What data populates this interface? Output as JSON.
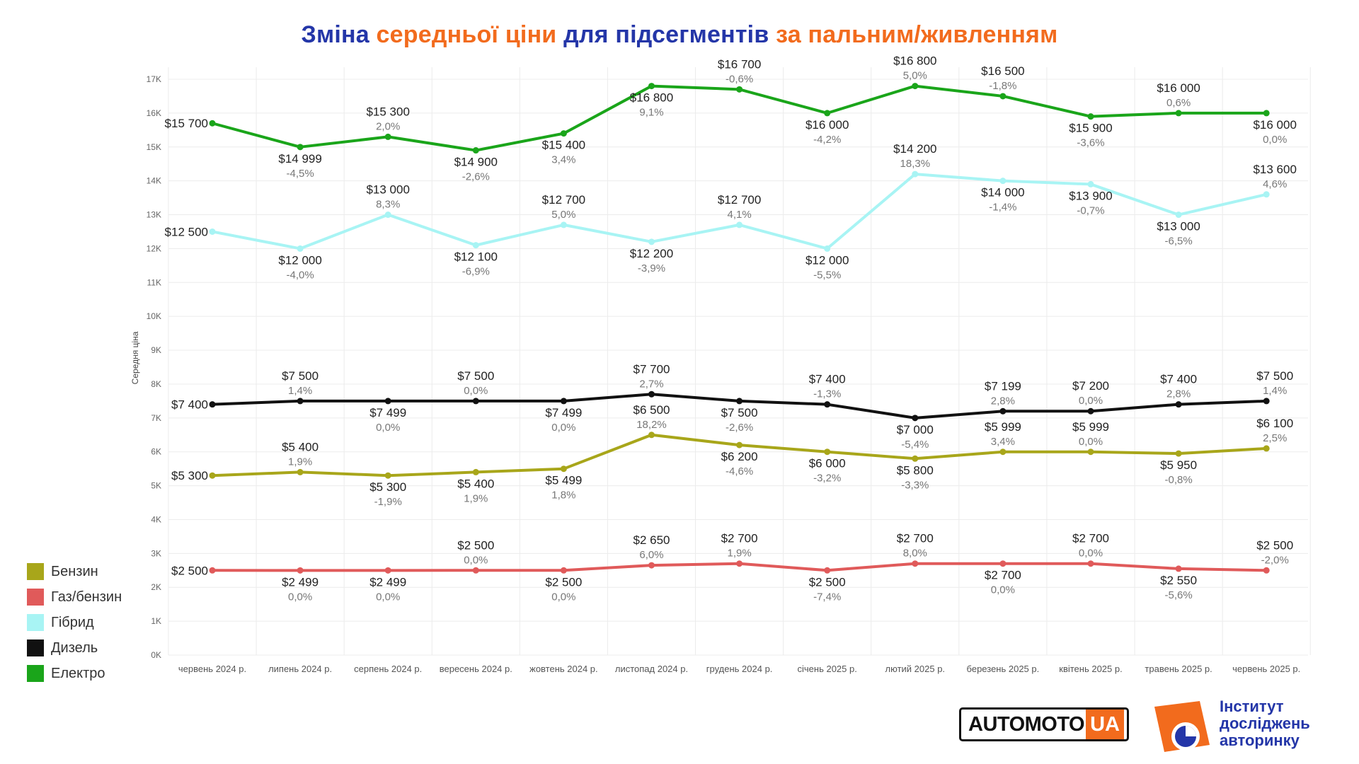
{
  "title": {
    "part1": "Зміна ",
    "part2": "середньої ціни",
    "part3": " для підсегментів ",
    "part4": "за пальним/живленням"
  },
  "colors": {
    "title_primary": "#2436a8",
    "title_accent": "#f26b1d"
  },
  "chart_data": {
    "type": "line",
    "ylabel": "Середня ціна",
    "ylim": [
      0,
      17000
    ],
    "y_ticks": [
      "0K",
      "1K",
      "2K",
      "3K",
      "4K",
      "5K",
      "6K",
      "7K",
      "8K",
      "9K",
      "10K",
      "11K",
      "12K",
      "13K",
      "14K",
      "15K",
      "16K",
      "17K"
    ],
    "categories": [
      "червень 2024 р.",
      "липень 2024 р.",
      "серпень 2024 р.",
      "вересень 2024 р.",
      "жовтень 2024 р.",
      "листопад 2024 р.",
      "грудень 2024 р.",
      "січень 2025 р.",
      "лютий 2025 р.",
      "березень 2025 р.",
      "квітень 2025 р.",
      "травень 2025 р.",
      "червень 2025 р."
    ],
    "grid": true,
    "legend_position": "bottom-left",
    "series": [
      {
        "name": "Електро",
        "color": "#1aa51a",
        "values": [
          15700,
          14999,
          15300,
          14900,
          15400,
          16800,
          16700,
          16000,
          16800,
          16500,
          15900,
          16000,
          16000
        ],
        "labels": [
          "$15 700",
          "$14 999",
          "$15 300",
          "$14 900",
          "$15 400",
          "$16 800",
          "$16 700",
          "$16 000",
          "$16 800",
          "$16 500",
          "$15 900",
          "$16 000",
          "$16 000"
        ],
        "changes": [
          "",
          "-4,5%",
          "2,0%",
          "-2,6%",
          "3,4%",
          "9,1%",
          "-0,6%",
          "-4,2%",
          "5,0%",
          "-1,8%",
          "-3,6%",
          "0,6%",
          "0,0%"
        ],
        "placement": [
          "left",
          "below",
          "above",
          "below",
          "below",
          "below",
          "above",
          "below",
          "above",
          "above",
          "below",
          "above",
          "below"
        ]
      },
      {
        "name": "Гібрид",
        "color": "#a8f4f4",
        "values": [
          12500,
          12000,
          13000,
          12100,
          12700,
          12200,
          12700,
          12000,
          14200,
          14000,
          13900,
          13000,
          13600
        ],
        "labels": [
          "$12 500",
          "$12 000",
          "$13 000",
          "$12 100",
          "$12 700",
          "$12 200",
          "$12 700",
          "$12 000",
          "$14 200",
          "$14 000",
          "$13 900",
          "$13 000",
          "$13 600"
        ],
        "changes": [
          "",
          "-4,0%",
          "8,3%",
          "-6,9%",
          "5,0%",
          "-3,9%",
          "4,1%",
          "-5,5%",
          "18,3%",
          "-1,4%",
          "-0,7%",
          "-6,5%",
          "4,6%"
        ],
        "placement": [
          "left",
          "below",
          "above",
          "below",
          "above",
          "below",
          "above",
          "below",
          "above",
          "below",
          "below",
          "below",
          "above"
        ]
      },
      {
        "name": "Дизель",
        "color": "#111111",
        "values": [
          7400,
          7500,
          7499,
          7500,
          7499,
          7700,
          7500,
          7400,
          7000,
          7199,
          7200,
          7400,
          7500
        ],
        "labels": [
          "$7 400",
          "$7 500",
          "$7 499",
          "$7 500",
          "$7 499",
          "$7 700",
          "$7 500",
          "$7 400",
          "$7 000",
          "$7 199",
          "$7 200",
          "$7 400",
          "$7 500"
        ],
        "changes": [
          "",
          "1,4%",
          "0,0%",
          "0,0%",
          "0,0%",
          "2,7%",
          "-2,6%",
          "-1,3%",
          "-5,4%",
          "2,8%",
          "0,0%",
          "2,8%",
          "1,4%"
        ],
        "placement": [
          "left",
          "above",
          "below",
          "above",
          "below",
          "above",
          "below",
          "above",
          "below",
          "above",
          "above",
          "above",
          "above"
        ]
      },
      {
        "name": "Бензин",
        "color": "#a8a61a",
        "values": [
          5300,
          5400,
          5300,
          5400,
          5499,
          6500,
          6200,
          6000,
          5800,
          5999,
          5999,
          5950,
          6100
        ],
        "labels": [
          "$5 300",
          "$5 400",
          "$5 300",
          "$5 400",
          "$5 499",
          "$6 500",
          "$6 200",
          "$6 000",
          "$5 800",
          "$5 999",
          "$5 999",
          "$5 950",
          "$6 100"
        ],
        "changes": [
          "",
          "1,9%",
          "-1,9%",
          "1,9%",
          "1,8%",
          "18,2%",
          "-4,6%",
          "-3,2%",
          "-3,3%",
          "3,4%",
          "0,0%",
          "-0,8%",
          "2,5%"
        ],
        "placement": [
          "left",
          "above",
          "below",
          "below",
          "below",
          "above",
          "below",
          "below",
          "below",
          "above",
          "above",
          "below",
          "above"
        ]
      },
      {
        "name": "Газ/бензин",
        "color": "#e05a5a",
        "values": [
          2500,
          2499,
          2499,
          2500,
          2500,
          2650,
          2700,
          2500,
          2700,
          2700,
          2700,
          2550,
          2500
        ],
        "labels": [
          "$2 500",
          "$2 499",
          "$2 499",
          "$2 500",
          "$2 500",
          "$2 650",
          "$2 700",
          "$2 500",
          "$2 700",
          "$2 700",
          "$2 700",
          "$2 550",
          "$2 500"
        ],
        "changes": [
          "",
          "0,0%",
          "0,0%",
          "0,0%",
          "0,0%",
          "6,0%",
          "1,9%",
          "-7,4%",
          "8,0%",
          "0,0%",
          "0,0%",
          "-5,6%",
          "-2,0%"
        ],
        "placement": [
          "left",
          "below",
          "below",
          "above",
          "below",
          "above",
          "above",
          "below",
          "above",
          "below",
          "above",
          "below",
          "above"
        ]
      }
    ]
  },
  "legend": [
    {
      "label": "Бензин",
      "color": "#a8a61a"
    },
    {
      "label": "Газ/бензин",
      "color": "#e05a5a"
    },
    {
      "label": "Гібрид",
      "color": "#a8f4f4"
    },
    {
      "label": "Дизель",
      "color": "#111111"
    },
    {
      "label": "Електро",
      "color": "#1aa51a"
    }
  ],
  "logos": {
    "automoto_part1": "AUTOMOTO",
    "automoto_part2": "UA",
    "institute_line1": "Інститут",
    "institute_line2": "досліджень",
    "institute_line3": "авторинку"
  }
}
